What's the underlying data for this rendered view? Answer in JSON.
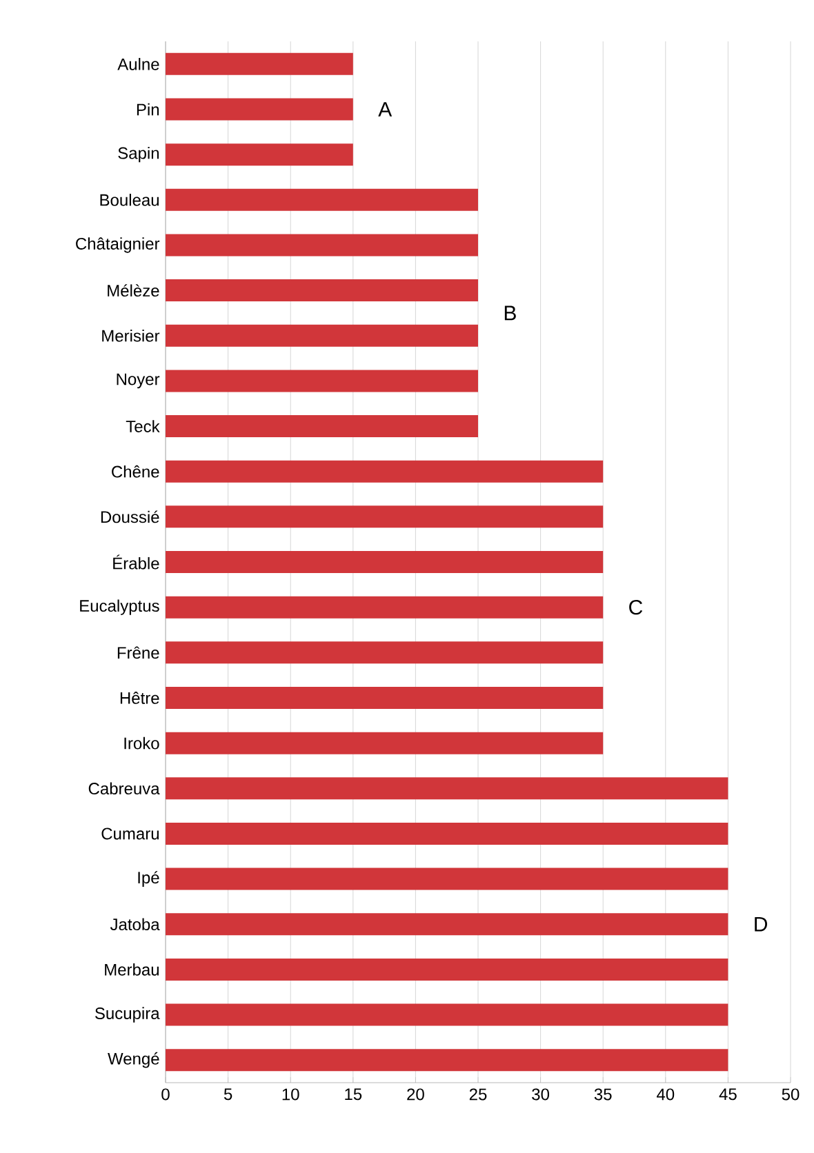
{
  "chart_data": {
    "type": "bar",
    "orientation": "horizontal",
    "categories": [
      "Aulne",
      "Pin",
      "Sapin",
      "Bouleau",
      "Châtaignier",
      "Mélèze",
      "Merisier",
      "Noyer",
      "Teck",
      "Chêne",
      "Doussié",
      "Érable",
      "Eucalyptus",
      "Frêne",
      "Hêtre",
      "Iroko",
      "Cabreuva",
      "Cumaru",
      "Ipé",
      "Jatoba",
      "Merbau",
      "Sucupira",
      "Wengé"
    ],
    "values": [
      15,
      15,
      15,
      25,
      25,
      25,
      25,
      25,
      25,
      35,
      35,
      35,
      35,
      35,
      35,
      35,
      45,
      45,
      45,
      45,
      45,
      45,
      45
    ],
    "color": "#d1363a",
    "xlim": [
      0,
      50
    ],
    "xticks": [
      0,
      5,
      10,
      15,
      20,
      25,
      30,
      35,
      40,
      45,
      50
    ],
    "grid": "x",
    "annotations": [
      "A",
      "B",
      "C",
      "D"
    ]
  }
}
